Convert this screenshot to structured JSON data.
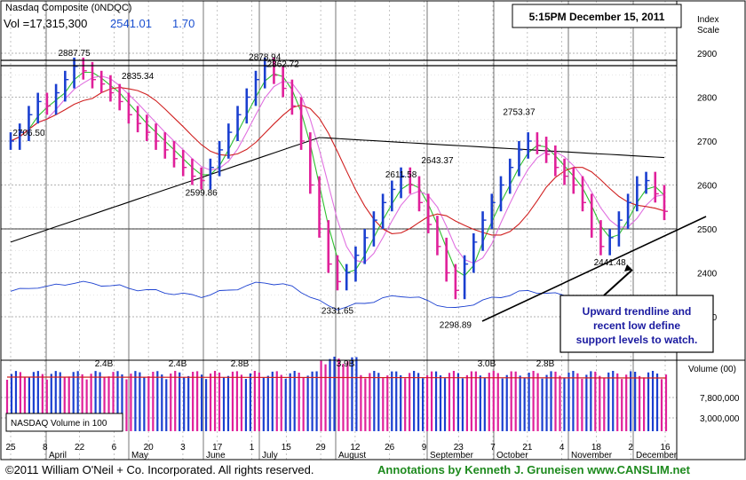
{
  "header": {
    "index_name": "Nasdaq Composite  (0NDQC)",
    "volume": "Vol =17,315,300",
    "price": "2541.01",
    "change": "1.70",
    "timestamp": "5:15PM December 15, 2011"
  },
  "axes": {
    "price_label_1": "Index",
    "price_label_2": "Scale",
    "volume_label": "Volume (00)"
  },
  "legend": {
    "volume_legend": "NASDAQ Volume in 100"
  },
  "annotation": {
    "lines": [
      "Upward trendline and",
      "recent low define",
      "support levels to watch."
    ]
  },
  "footer": {
    "copyright": "©2011 William O'Neil + Co. Incorporated. All rights reserved.",
    "credit": "Annotations by Kenneth J. Gruneisen  www.CANSLIM.net"
  },
  "colors": {
    "up_bar": "#1a3fd0",
    "down_bar": "#e0209a",
    "ma_short": "#2fbf2f",
    "ma_mid": "#e070e0",
    "ma_50": "#d02020",
    "ma_200": "#000000",
    "relative_strength": "#1a3fd0",
    "volume_avg": "#d02020"
  },
  "chart_data": {
    "type": "line",
    "price_ylim": [
      2250,
      2950
    ],
    "price_ticks": [
      "2900",
      "2800",
      "2700",
      "2600",
      "2500",
      "2400",
      "2300"
    ],
    "volume_ticks": [
      "7,800,000",
      "3,000,000"
    ],
    "x_tick_labels": [
      "25",
      "8",
      "22",
      "6",
      "20",
      "3",
      "17",
      "1",
      "15",
      "29",
      "12",
      "26",
      "9",
      "23",
      "7",
      "21",
      "4",
      "18",
      "2",
      "16"
    ],
    "month_labels": [
      "April",
      "May",
      "June",
      "July",
      "August",
      "September",
      "October",
      "November",
      "December"
    ],
    "price_annotations": [
      "2887.75",
      "2835.34",
      "2706.50",
      "2599.86",
      "2878.94",
      "2862.72",
      "2331.65",
      "2611.58",
      "2643.37",
      "2298.89",
      "2753.37",
      "2441.48"
    ],
    "volume_annotations": [
      "2.4B",
      "2.4B",
      "2.8B",
      "3.9B",
      "3.0B",
      "2.8B"
    ],
    "series": [
      {
        "name": "Index",
        "close": [
          2700,
          2720,
          2760,
          2790,
          2780,
          2810,
          2840,
          2870,
          2860,
          2840,
          2830,
          2810,
          2790,
          2760,
          2740,
          2720,
          2700,
          2680,
          2660,
          2640,
          2620,
          2610,
          2640,
          2680,
          2720,
          2760,
          2800,
          2840,
          2870,
          2850,
          2820,
          2780,
          2700,
          2600,
          2500,
          2420,
          2380,
          2400,
          2440,
          2480,
          2520,
          2560,
          2590,
          2620,
          2600,
          2560,
          2510,
          2460,
          2400,
          2360,
          2420,
          2470,
          2520,
          2560,
          2600,
          2640,
          2680,
          2700,
          2690,
          2670,
          2640,
          2620,
          2600,
          2560,
          2500,
          2460,
          2480,
          2520,
          2560,
          2600,
          2610,
          2580,
          2540
        ]
      }
    ]
  }
}
